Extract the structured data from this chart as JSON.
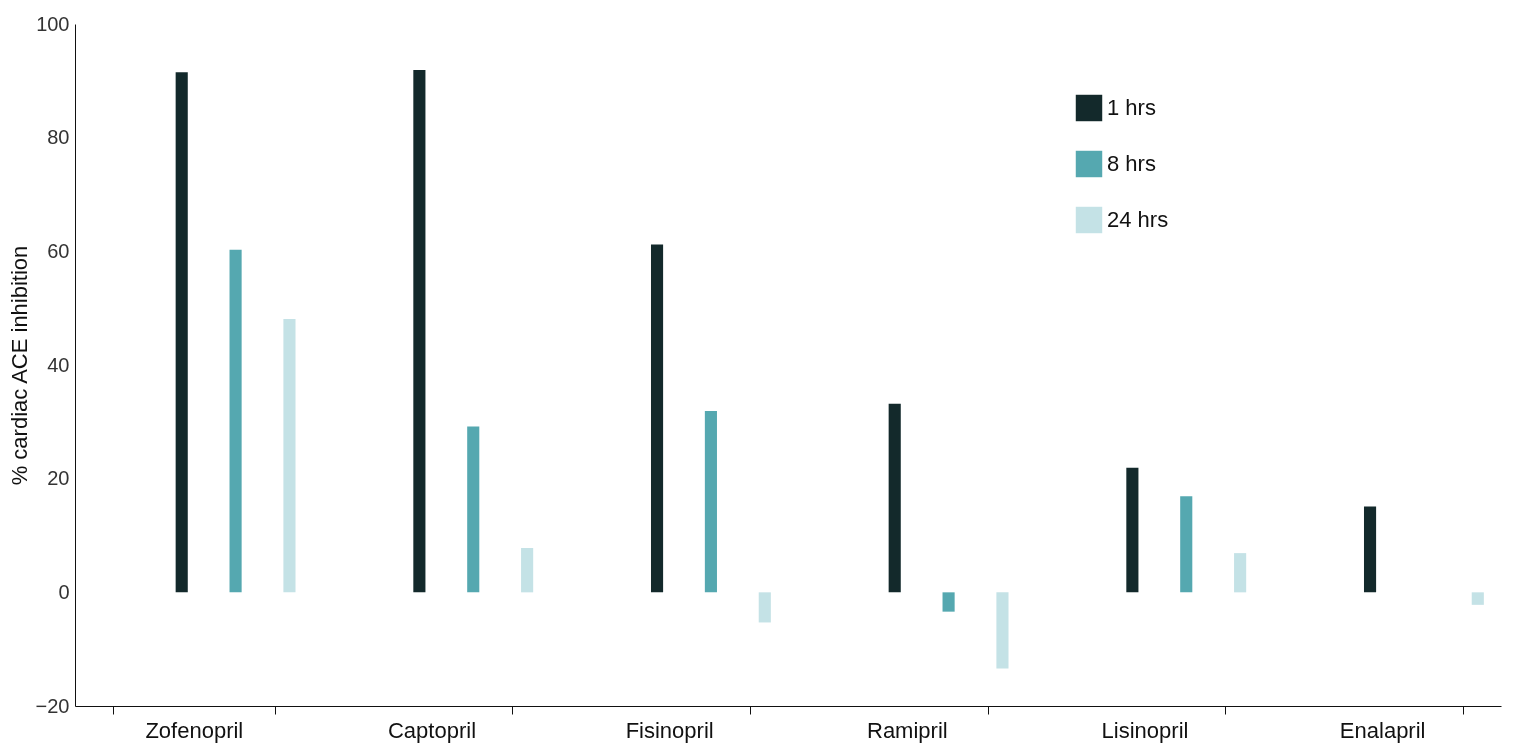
{
  "chart_data": {
    "type": "bar",
    "ylabel": "% cardiac ACE inhibition",
    "categories": [
      "Zofenopril",
      "Captopril",
      "Fisinopril",
      "Ramipril",
      "Lisinopril",
      "Enalapril"
    ],
    "series": [
      {
        "name": "1 hrs",
        "color": "#13292b",
        "values": [
          91.5,
          91.9,
          61.2,
          33.2,
          21.9,
          15.1
        ]
      },
      {
        "name": "8 hrs",
        "color": "#55a8b0",
        "values": [
          60.3,
          29.2,
          31.9,
          -3.4,
          16.9,
          null
        ]
      },
      {
        "name": "24 hrs",
        "color": "#c4e2e6",
        "values": [
          48.1,
          7.8,
          -5.3,
          -13.4,
          6.9,
          -2.2
        ]
      }
    ],
    "ylim": [
      -20,
      100
    ],
    "yticks": [
      -20,
      0,
      20,
      40,
      60,
      80,
      100
    ],
    "grid": false,
    "legend": "top right"
  }
}
